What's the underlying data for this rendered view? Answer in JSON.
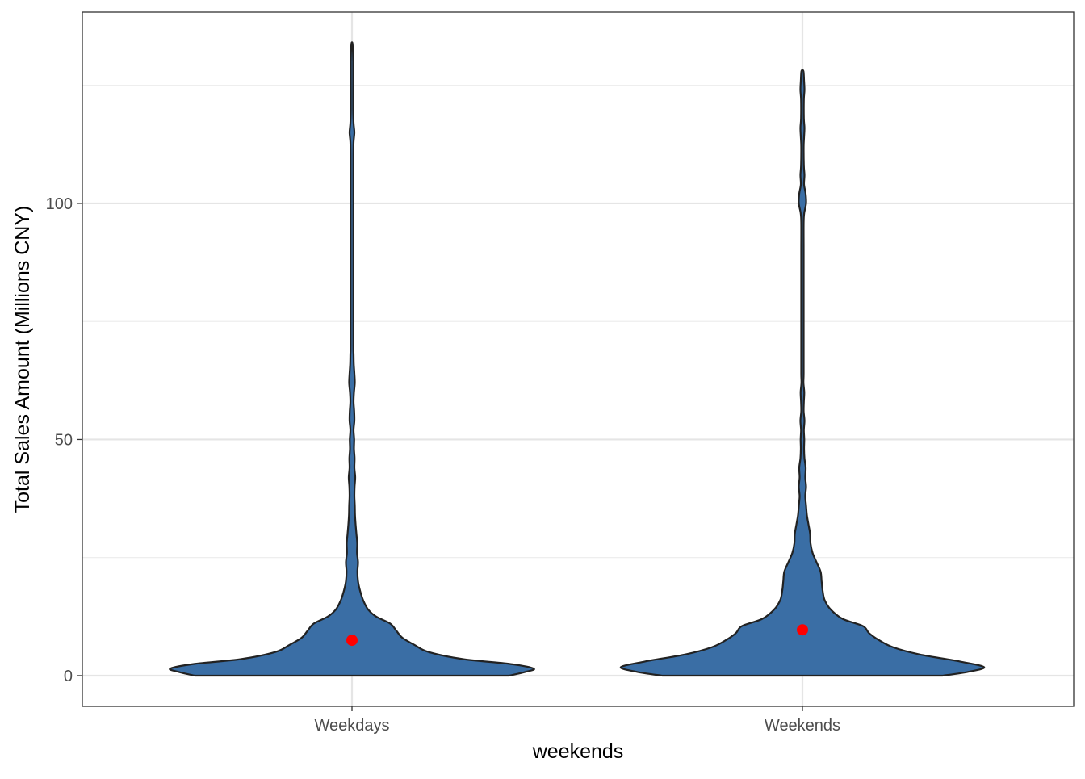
{
  "chart_data": {
    "type": "violin",
    "xlabel": "weekends",
    "ylabel": "Total Sales Amount (Millions CNY)",
    "categories": [
      "Weekdays",
      "Weekends"
    ],
    "ylim": [
      -6.5,
      140.5
    ],
    "y_major_ticks": [
      0,
      50,
      100
    ],
    "y_tick_labels": [
      "0",
      "50",
      "100"
    ],
    "y_minor_ticks": [
      25,
      75,
      125
    ],
    "grid": true,
    "legend": "none",
    "colors": {
      "fill": "#3a6ea5",
      "outline": "#222222",
      "mean_point": "#ff0000"
    },
    "mean_marker": "red point",
    "violins": [
      {
        "category": "Weekdays",
        "mean": 7.5,
        "profile": [
          [
            0,
            0.779
          ],
          [
            0.8,
            0.86
          ],
          [
            1.5,
            0.9
          ],
          [
            2.5,
            0.78
          ],
          [
            3.5,
            0.55
          ],
          [
            5,
            0.38
          ],
          [
            6.5,
            0.31
          ],
          [
            8,
            0.25
          ],
          [
            9.5,
            0.22
          ],
          [
            11,
            0.19
          ],
          [
            12.5,
            0.12
          ],
          [
            14,
            0.08
          ],
          [
            16,
            0.055
          ],
          [
            18,
            0.04
          ],
          [
            20,
            0.03
          ],
          [
            22,
            0.027
          ],
          [
            24,
            0.03
          ],
          [
            26,
            0.025
          ],
          [
            28,
            0.026
          ],
          [
            30,
            0.022
          ],
          [
            32,
            0.018
          ],
          [
            34,
            0.015
          ],
          [
            36,
            0.014
          ],
          [
            38,
            0.012
          ],
          [
            40,
            0.013
          ],
          [
            42,
            0.016
          ],
          [
            44,
            0.012
          ],
          [
            46,
            0.013
          ],
          [
            48,
            0.01
          ],
          [
            50,
            0.011
          ],
          [
            52,
            0.008
          ],
          [
            54,
            0.012
          ],
          [
            56,
            0.011
          ],
          [
            58,
            0.008
          ],
          [
            60,
            0.01
          ],
          [
            62,
            0.014
          ],
          [
            64,
            0.012
          ],
          [
            66,
            0.009
          ],
          [
            68,
            0.008
          ],
          [
            70,
            0.007
          ],
          [
            80,
            0.007
          ],
          [
            90,
            0.007
          ],
          [
            100,
            0.007
          ],
          [
            110,
            0.007
          ],
          [
            113,
            0.008
          ],
          [
            115,
            0.012
          ],
          [
            117,
            0.008
          ],
          [
            120,
            0.006
          ],
          [
            125,
            0.006
          ],
          [
            130,
            0.006
          ],
          [
            133,
            0.004
          ],
          [
            134,
            0.002
          ]
        ]
      },
      {
        "category": "Weekends",
        "mean": 9.7,
        "profile": [
          [
            0,
            0.695
          ],
          [
            0.8,
            0.82
          ],
          [
            1.8,
            0.9
          ],
          [
            3,
            0.78
          ],
          [
            4.5,
            0.58
          ],
          [
            6,
            0.45
          ],
          [
            7.5,
            0.38
          ],
          [
            9,
            0.33
          ],
          [
            10.5,
            0.3
          ],
          [
            12,
            0.2
          ],
          [
            14,
            0.14
          ],
          [
            16,
            0.11
          ],
          [
            18,
            0.1
          ],
          [
            20,
            0.095
          ],
          [
            22,
            0.09
          ],
          [
            24,
            0.07
          ],
          [
            26,
            0.05
          ],
          [
            28,
            0.04
          ],
          [
            30,
            0.038
          ],
          [
            32,
            0.03
          ],
          [
            34,
            0.022
          ],
          [
            36,
            0.018
          ],
          [
            38,
            0.014
          ],
          [
            40,
            0.018
          ],
          [
            42,
            0.014
          ],
          [
            44,
            0.016
          ],
          [
            46,
            0.01
          ],
          [
            48,
            0.008
          ],
          [
            50,
            0.009
          ],
          [
            52,
            0.007
          ],
          [
            54,
            0.01
          ],
          [
            56,
            0.006
          ],
          [
            58,
            0.007
          ],
          [
            60,
            0.009
          ],
          [
            62,
            0.005
          ],
          [
            64,
            0.006
          ],
          [
            70,
            0.006
          ],
          [
            80,
            0.006
          ],
          [
            90,
            0.006
          ],
          [
            96,
            0.006
          ],
          [
            98,
            0.009
          ],
          [
            100,
            0.018
          ],
          [
            102,
            0.016
          ],
          [
            104,
            0.008
          ],
          [
            106,
            0.01
          ],
          [
            108,
            0.007
          ],
          [
            112,
            0.006
          ],
          [
            114,
            0.008
          ],
          [
            116,
            0.01
          ],
          [
            118,
            0.007
          ],
          [
            122,
            0.007
          ],
          [
            124,
            0.01
          ],
          [
            126,
            0.008
          ],
          [
            128,
            0.005
          ]
        ]
      }
    ]
  }
}
